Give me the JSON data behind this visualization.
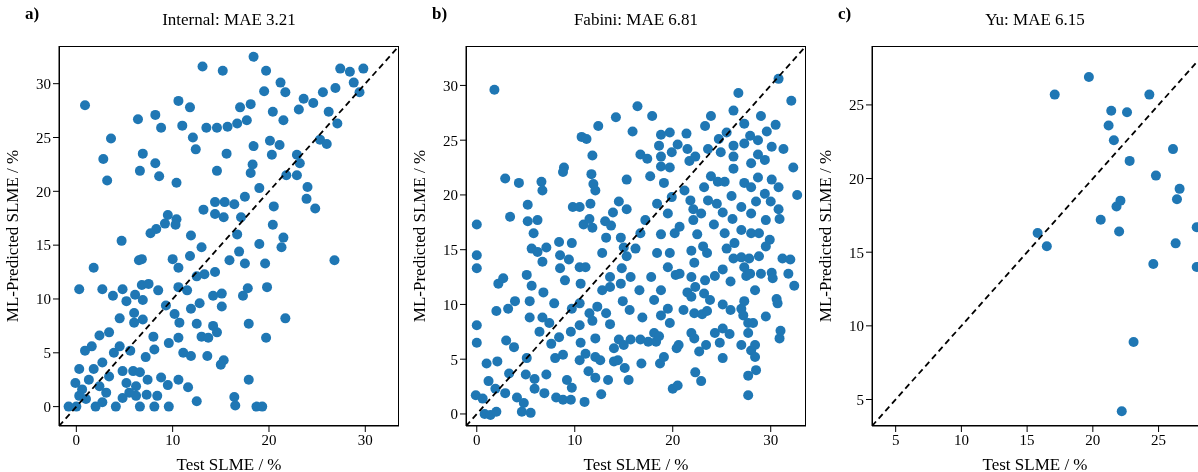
{
  "chart_data": [
    {
      "type": "scatter",
      "title": "Internal: MAE 3.21",
      "xlabel": "Test SLME / %",
      "ylabel": "ML-Predicted SLME / %",
      "annotations": [
        "a)"
      ],
      "xlim": [
        -1.8,
        33.5
      ],
      "ylim": [
        -1.8,
        33.5
      ],
      "xticks": [
        0,
        10,
        20,
        30
      ],
      "yticks": [
        0,
        5,
        10,
        15,
        20,
        25,
        30
      ],
      "marker": "circle",
      "grid": false,
      "legend": false,
      "series": [
        {
          "color": "#1f77b4",
          "x": [
            0.9,
            3.6,
            2.8,
            3.2,
            1.8,
            0.3,
            4.7,
            6.4,
            6.9,
            6.6,
            8.2,
            8.8,
            8.2,
            8.6,
            10.6,
            11.8,
            11.0,
            12.1,
            12.4,
            10.4,
            13.1,
            15.2,
            13.5,
            14.6,
            15.7,
            16.7,
            14.6,
            15.6,
            17.0,
            18.1,
            17.7,
            18.4,
            19.7,
            19.5,
            21.2,
            21.7,
            20.4,
            21.5,
            23.6,
            23.1,
            24.6,
            25.6,
            26.9,
            27.4,
            28.4,
            29.8,
            28.8,
            29.4,
            26.2,
            27.1,
            25.3,
            26.0,
            20.1,
            18.4,
            21.1,
            20.3,
            22.9,
            23.2,
            22.9,
            21.8,
            24.0,
            23.9,
            24.8,
            20.5,
            20.4,
            21.5,
            21.3,
            26.8,
            21.7,
            19.8,
            19.6,
            19.7,
            19.0,
            19.0,
            18.1,
            18.3,
            17.5,
            16.4,
            14.4,
            13.2,
            14.4,
            15.4,
            15.3,
            17.1,
            16.7,
            16.9,
            17.5,
            15.9,
            13.0,
            11.9,
            11.8,
            10.0,
            10.6,
            9.5,
            9.2,
            10.4,
            10.3,
            8.3,
            7.7,
            6.5,
            6.8,
            2.7,
            3.8,
            4.8,
            6.1,
            6.8,
            7.5,
            8.5,
            6.0,
            6.9,
            5.2,
            6.0,
            6.9,
            4.5,
            8.1,
            8.0,
            9.6,
            10.6,
            10.7,
            9.3,
            10.2,
            10.6,
            11.5,
            12.5,
            13.3,
            14.4,
            14.2,
            15.1,
            15.1,
            12.8,
            11.9,
            13.0,
            13.7,
            14.6,
            14.2,
            12.5,
            17.3,
            17.8,
            17.9,
            11.1,
            11.9,
            13.6,
            15.3,
            15.0,
            10.6,
            11.6,
            12.5,
            16.4,
            16.5,
            17.9,
            18.7,
            19.3,
            9.6,
            8.1,
            6.6,
            6.2,
            7.3,
            8.4,
            9.5,
            8.8,
            7.2,
            6.2,
            5.9,
            4.8,
            3.9,
            2.4,
            1.6,
            0.9,
            0.3,
            -0.1,
            -0.8,
            0,
            1.0,
            2.0,
            3.1,
            4.1,
            4.8,
            2.4,
            3.4,
            1.3,
            2.7,
            3.4,
            4.5,
            5.6,
            0.6,
            2.7,
            5.2,
            6.6,
            7.4,
            5.5,
            0.3,
            1.8
          ],
          "values": [
            28.0,
            24.9,
            23.0,
            21.0,
            12.9,
            10.9,
            15.4,
            26.7,
            23.5,
            21.9,
            27.1,
            25.9,
            22.6,
            21.4,
            28.4,
            27.8,
            26.1,
            25.0,
            23.9,
            20.8,
            31.6,
            31.2,
            25.9,
            25.9,
            26.0,
            26.3,
            21.9,
            23.5,
            27.8,
            28.1,
            26.6,
            32.5,
            31.2,
            29.3,
            30.1,
            29.2,
            27.4,
            26.6,
            28.6,
            27.6,
            28.2,
            29.2,
            29.6,
            31.4,
            31.1,
            31.4,
            30.1,
            29.2,
            27.4,
            26.3,
            24.8,
            24.4,
            24.7,
            24.2,
            24.3,
            23.4,
            23.4,
            22.6,
            21.5,
            21.5,
            20.4,
            19.3,
            18.4,
            18.6,
            16.9,
            15.7,
            14.8,
            13.6,
            8.2,
            11.1,
            13.3,
            6.4,
            15.1,
            20.3,
            21.7,
            22.5,
            19.5,
            18.8,
            19.0,
            18.3,
            17.9,
            19.0,
            17.6,
            17.6,
            16.0,
            14.4,
            13.3,
            13.6,
            14.8,
            15.9,
            14.0,
            13.7,
            12.9,
            17.8,
            17.0,
            17.4,
            16.9,
            16.5,
            16.1,
            13.6,
            13.7,
            10.9,
            10.3,
            10.9,
            10.4,
            11.3,
            11.4,
            10.8,
            8.7,
            9.9,
            9.8,
            7.8,
            8.1,
            8.2,
            5.3,
            6.5,
            5.9,
            6.4,
            7.8,
            9.4,
            8.6,
            11.1,
            10.8,
            12.1,
            12.3,
            12.5,
            10.3,
            10.5,
            9.3,
            9.6,
            9.1,
            6.5,
            6.4,
            6.9,
            7.5,
            7.7,
            10.3,
            11.0,
            7.7,
            5.0,
            4.7,
            4.7,
            4.3,
            3.9,
            2.5,
            1.8,
            0.5,
            0.9,
            0.1,
            2.5,
            0,
            0,
            0,
            0,
            0,
            1.0,
            1.1,
            1.0,
            2.0,
            2.7,
            4.6,
            1.9,
            3.3,
            3.3,
            5.0,
            6.6,
            5.6,
            5.2,
            3.5,
            2.2,
            0,
            0,
            0.7,
            0,
            1.3,
            0,
            0.8,
            1.9,
            2.8,
            2.5,
            4.1,
            6.9,
            5.6,
            5.2,
            1.6,
            0.4,
            2.2,
            3.2,
            2.5,
            1.3,
            1.0,
            3.5
          ]
        },
        {
          "type": "line",
          "color": "#000000",
          "line_style": "dashed",
          "marker": "none",
          "x": [
            -1.8,
            33.5
          ],
          "values": [
            -1.8,
            33.5
          ]
        }
      ]
    },
    {
      "type": "scatter",
      "title": "Fabini: MAE 6.81",
      "xlabel": "Test SLME / %",
      "ylabel": "ML-Predicted SLME / %",
      "annotations": [
        "b)"
      ],
      "xlim": [
        -1.1,
        33.6
      ],
      "ylim": [
        -1.1,
        33.6
      ],
      "xticks": [
        0,
        10,
        20,
        30
      ],
      "yticks": [
        0,
        5,
        10,
        15,
        20,
        25,
        30
      ],
      "marker": "circle",
      "grid": false,
      "legend": false,
      "series": [
        {
          "color": "#1f77b4",
          "x": [
            1.8,
            0,
            0,
            0,
            0,
            0,
            -0.1,
            0.6,
            1.2,
            1.0,
            2.1,
            1.9,
            0.8,
            1.4,
            2.0,
            2.9,
            4.3,
            3.4,
            2.2,
            2.7,
            2.0,
            3.2,
            3.9,
            3.0,
            3.8,
            3.3,
            2.9,
            4.1,
            4.6,
            4.8,
            5.5,
            5.2,
            5.2,
            6.2,
            5.8,
            5.6,
            6.2,
            5.1,
            5.6,
            5.4,
            5.4,
            5.1,
            5.0,
            5.9,
            5.9,
            6.6,
            6.7,
            7.1,
            6.7,
            6.8,
            6.7,
            6.4,
            7.4,
            7.6,
            7.1,
            6.9,
            8.1,
            8.8,
            9.6,
            9.2,
            9.7,
            8.0,
            8.8,
            8.4,
            7.9,
            8.4,
            8.5,
            8.5,
            8.9,
            8.8,
            9.4,
            9.0,
            9.7,
            9.7,
            9.6,
            9.8,
            10.5,
            10.7,
            11.2,
            11.8,
            11.7,
            11.9,
            12.1,
            11.6,
            12.4,
            10.9,
            11.5,
            11.8,
            10.5,
            11.1,
            10.6,
            10.5,
            10.5,
            10.6,
            10.5,
            11.1,
            11.0,
            11.4,
            11.5,
            11.8,
            12.3,
            12.1,
            12.1,
            12.6,
            12.1,
            12.7,
            13.4,
            14.0,
            14.4,
            14.0,
            14.5,
            15.0,
            15.1,
            15.5,
            15.7,
            13.2,
            13.6,
            12.8,
            13.6,
            13.6,
            12.8,
            13.2,
            13.1,
            13.7,
            13.9,
            14.5,
            14.2,
            15.3,
            15.3,
            14.7,
            15.0,
            15.3,
            14.8,
            14.7,
            14.9,
            15.6,
            15.7,
            15.9,
            16.4,
            16.7,
            17.4,
            17.9,
            17.7,
            16.8,
            16.7,
            16.9,
            16.6,
            16.2,
            16.7,
            17.2,
            17.5,
            18.3,
            18.1,
            18.6,
            18.1,
            17.8,
            18.4,
            18.4,
            18.8,
            18.6,
            18.8,
            18.8,
            19.7,
            19.9,
            19.7,
            19.1,
            19.9,
            18.8,
            19.5,
            19.7,
            19.5,
            18.8,
            18.8,
            19.5,
            19.7,
            18.7,
            19.1,
            20.0,
            20.5,
            20.4,
            20.6,
            21.1,
            21.5,
            20.3,
            20.7,
            20.2,
            20.7,
            20.5,
            21.4,
            21.5,
            21.2,
            21.8,
            22.1,
            21.7,
            22.3,
            22.1,
            22.5,
            21.9,
            22.2,
            21.9,
            22.3,
            21.9,
            22.2,
            21.9,
            22.2,
            22.3,
            22.9,
            22.7,
            23.4,
            23.0,
            23.5,
            23.2,
            23.3,
            23.5,
            23.1,
            22.9,
            23.6,
            23.2,
            23.6,
            23.3,
            23.9,
            23.9,
            23.8,
            24.3,
            24.2,
            24.5,
            24.6,
            24.7,
            24.9,
            24.3,
            24.8,
            25.1,
            25.1,
            25.8,
            25.1,
            25.9,
            25.1,
            25.9,
            25.5,
            25.3,
            25.1,
            25.3,
            25.5,
            26.2,
            26.2,
            26.2,
            26.2,
            26.0,
            26.1,
            26.3,
            26.2,
            26.7,
            27.3,
            27.0,
            27.0,
            27.2,
            27.3,
            27.3,
            27.5,
            27.0,
            27.0,
            27.0,
            27.3,
            27.3,
            27.7,
            27.7,
            27.7,
            27.7,
            28.0,
            28.4,
            28.4,
            28.2,
            28.4,
            27.9,
            27.8,
            28.0,
            28.0,
            28.0,
            28.0,
            27.9,
            28.5,
            28.8,
            28.8,
            29.0,
            28.7,
            28.7,
            28.7,
            28.5,
            29.5,
            29.0,
            29.5,
            29.5,
            29.4,
            29.4,
            29.6,
            30.1,
            30.2,
            29.9,
            30.0,
            30.1,
            30.1,
            30.5,
            30.8,
            30.6,
            30.7,
            30.9,
            31.0,
            30.9,
            30.8,
            30.8,
            31.2,
            31.3,
            31.8,
            32.0,
            32.1,
            32.3,
            32.4,
            32.7
          ],
          "values": [
            29.6,
            17.3,
            14.5,
            13.3,
            8.1,
            6.5,
            1.7,
            1.4,
            3.0,
            4.6,
            4.8,
            2.3,
            0,
            -0.1,
            0.2,
            21.5,
            21.1,
            18.0,
            11.9,
            12.4,
            9.4,
            9.6,
            10.3,
            6.7,
            6.1,
            3.7,
            1.9,
            1.5,
            0.2,
            1.0,
            0.1,
            19.1,
            17.6,
            17.7,
            16.5,
            15.1,
            14.8,
            12.7,
            11.7,
            10.3,
            8.8,
            5.1,
            3.6,
            3.2,
            2.3,
            21.2,
            20.4,
            15.2,
            13.9,
            11.1,
            8.8,
            7.5,
            8.3,
            6.4,
            3.6,
            1.9,
            1.5,
            1.3,
            1.3,
            3.1,
            2.4,
            5.1,
            5.4,
            7.0,
            10.1,
            15.7,
            14.5,
            13.3,
            22.5,
            22.1,
            14.1,
            12.2,
            15.6,
            9.6,
            7.5,
            18.9,
            18.9,
            25.3,
            25.1,
            23.6,
            21.9,
            21.0,
            20.4,
            19.2,
            26.3,
            17.3,
            17.8,
            17.0,
            13.4,
            13.4,
            11.9,
            10.1,
            8.1,
            6.5,
            4.9,
            5.5,
            1.1,
            3.9,
            9.2,
            8.5,
            9.8,
            6.9,
            5.2,
            4.9,
            3.3,
            1.8,
            3.1,
            4.8,
            4.9,
            6.0,
            6.8,
            6.3,
            4.2,
            3.1,
            6.8,
            9.2,
            8.2,
            11.3,
            11.6,
            12.5,
            14.7,
            16.1,
            17.6,
            17.2,
            18.4,
            19.4,
            27.1,
            21.4,
            18.7,
            16.1,
            15.2,
            14.4,
            13.3,
            11.9,
            10.3,
            9.5,
            12.5,
            25.8,
            28.1,
            23.7,
            23.3,
            27.2,
            21.7,
            4.6,
            6.8,
            8.8,
            11.3,
            15.1,
            16.5,
            17.7,
            6.6,
            6.6,
            7.4,
            7.1,
            10.4,
            12.5,
            14.7,
            19.2,
            23.5,
            24.5,
            25.5,
            22.6,
            25.7,
            23.9,
            22.5,
            21.1,
            19.8,
            16.4,
            18.3,
            14.7,
            13.4,
            11.3,
            9.0,
            9.6,
            8.3,
            4.6,
            5.2,
            2.3,
            2.6,
            6.0,
            6.3,
            9.5,
            11.1,
            12.7,
            12.8,
            16.5,
            17.1,
            24.6,
            25.6,
            24.2,
            20.4,
            19.5,
            18.7,
            23.1,
            23.5,
            17.7,
            16.4,
            14.9,
            13.8,
            12.5,
            11.6,
            10.7,
            9.2,
            7.4,
            6.9,
            3.8,
            3.0,
            5.7,
            6.3,
            9.1,
            9.4,
            11.0,
            12.2,
            14.7,
            15.3,
            18.3,
            19.5,
            20.7,
            24.2,
            26.3,
            27.2,
            21.7,
            10.4,
            12.6,
            17.3,
            19.2,
            21.2,
            25.1,
            23.9,
            7.4,
            6.5,
            5.1,
            7.8,
            7.3,
            10.0,
            9.5,
            13.2,
            12.1,
            15.1,
            16.5,
            18.4,
            21.2,
            25.7,
            27.7,
            24.5,
            23.5,
            22.4,
            19.9,
            17.8,
            15.6,
            14.2,
            29.3,
            26.5,
            9.6,
            6.3,
            9.0,
            10.3,
            13.4,
            12.6,
            14.3,
            16.8,
            18.9,
            21.1,
            24.7,
            8.3,
            7.4,
            3.5,
            1.7,
            5.8,
            5.2,
            6.3,
            8.3,
            11.3,
            12.8,
            14.2,
            16.5,
            18.3,
            20.7,
            22.9,
            25.4,
            4.0,
            14.4,
            16.5,
            27.2,
            25.0,
            23.7,
            21.6,
            19.4,
            8.9,
            12.8,
            15.3,
            17.7,
            20.1,
            23.2,
            25.8,
            12.9,
            12.4,
            15.9,
            19.4,
            21.4,
            24.4,
            26.4,
            30.6,
            10.5,
            10.1,
            6.9,
            7.6,
            17.8,
            18.7,
            20.7,
            14.2,
            24.2,
            12.8,
            14.1,
            28.6,
            22.5,
            11.7,
            20.0
          ]
        },
        {
          "type": "line",
          "color": "#000000",
          "line_style": "dashed",
          "marker": "none",
          "x": [
            -1.1,
            33.6
          ],
          "values": [
            -1.1,
            33.6
          ]
        }
      ]
    },
    {
      "type": "scatter",
      "title": "Yu: MAE 6.15",
      "xlabel": "Test SLME / %",
      "ylabel": "ML-Predicted SLME / %",
      "annotations": [
        "c)"
      ],
      "xlim": [
        3.2,
        28.0
      ],
      "ylim": [
        3.2,
        29.0
      ],
      "xticks": [
        5,
        10,
        15,
        20,
        25
      ],
      "yticks": [
        5,
        10,
        15,
        20,
        25
      ],
      "marker": "circle",
      "grid": false,
      "legend": false,
      "series": [
        {
          "color": "#1f77b4",
          "x": [
            15.8,
            16.5,
            17.1,
            19.7,
            20.6,
            21.2,
            21.4,
            21.6,
            21.8,
            22.1,
            22.0,
            22.6,
            22.8,
            22.2,
            23.1,
            24.3,
            24.8,
            24.6,
            26.1,
            26.6,
            26.4,
            26.3,
            27.9,
            27.9
          ],
          "values": [
            16.3,
            15.4,
            25.7,
            26.9,
            17.2,
            23.6,
            24.6,
            22.6,
            18.1,
            18.5,
            16.4,
            24.5,
            21.2,
            4.2,
            8.9,
            25.7,
            20.2,
            14.2,
            22.0,
            19.3,
            18.6,
            15.6,
            16.7,
            14.0
          ]
        },
        {
          "type": "line",
          "color": "#000000",
          "line_style": "dashed",
          "marker": "none",
          "x": [
            3.2,
            28.0
          ],
          "values": [
            3.2,
            28.0
          ]
        }
      ]
    }
  ]
}
